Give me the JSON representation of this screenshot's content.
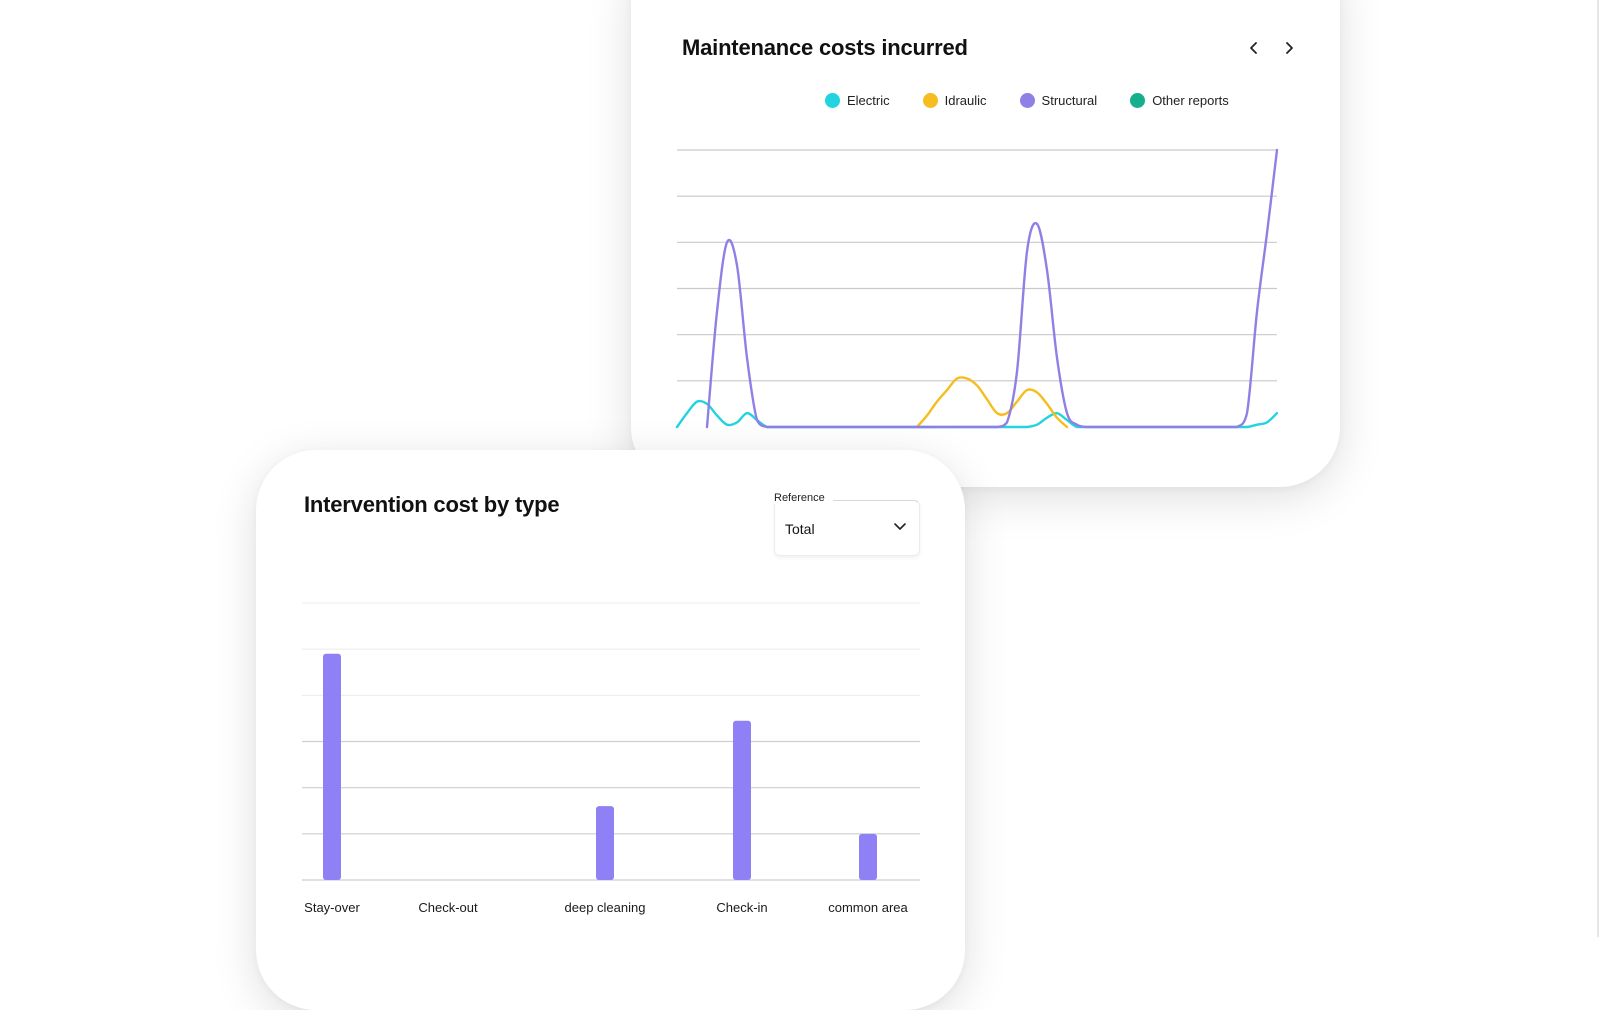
{
  "line_card": {
    "title": "Maintenance costs incurred",
    "nav": {
      "prev_icon": "chevron-left-icon",
      "next_icon": "chevron-right-icon"
    },
    "legend": [
      {
        "label": "Electric",
        "color": "#22d3e0"
      },
      {
        "label": "Idraulic",
        "color": "#f5bd1f"
      },
      {
        "label": "Structural",
        "color": "#8f80e6"
      },
      {
        "label": "Other reports",
        "color": "#14b08e"
      }
    ]
  },
  "bar_card": {
    "title": "Intervention cost by type",
    "reference": {
      "label": "Reference",
      "value": "Total",
      "icon": "chevron-down-icon"
    }
  },
  "chart_data": [
    {
      "type": "line",
      "title": "Maintenance costs incurred",
      "xlabel": "",
      "ylabel": "",
      "x": [
        0,
        1,
        2,
        3,
        4,
        5,
        6,
        7,
        8,
        9,
        10,
        11,
        12,
        13,
        14,
        15,
        16,
        17,
        18,
        19,
        20,
        21,
        22,
        23,
        24,
        25,
        26,
        27,
        28,
        29,
        30,
        31,
        32,
        33,
        34,
        35,
        36,
        37,
        38,
        39,
        40,
        41,
        42,
        43,
        44,
        45,
        46,
        47,
        48,
        49,
        50,
        51,
        52,
        53,
        54,
        55,
        56,
        57,
        58,
        59,
        60
      ],
      "ylim": [
        0,
        6
      ],
      "grid": true,
      "legend_position": "top-right",
      "series": [
        {
          "name": "Electric",
          "color": "#22d3e0",
          "values": [
            0,
            0.3,
            0.55,
            0.5,
            0.25,
            0.05,
            0.1,
            0.3,
            0.15,
            0,
            0,
            0,
            0,
            0,
            0,
            0,
            0,
            0,
            0,
            0,
            0,
            0,
            0,
            0,
            0,
            0,
            0,
            0,
            0,
            0,
            0,
            0,
            0,
            0,
            0,
            0,
            0.05,
            0.2,
            0.3,
            0.15,
            0,
            0,
            0,
            0,
            0,
            0,
            0,
            0,
            0,
            0,
            0,
            0,
            0,
            0,
            0,
            0,
            0,
            0,
            0.05,
            0.1,
            0.3
          ]
        },
        {
          "name": "Idraulic",
          "color": "#f5bd1f",
          "values": [
            null,
            null,
            null,
            null,
            null,
            null,
            null,
            null,
            null,
            null,
            null,
            null,
            null,
            null,
            null,
            null,
            null,
            null,
            null,
            null,
            null,
            null,
            null,
            null,
            0,
            0.25,
            0.55,
            0.8,
            1.05,
            1.05,
            0.9,
            0.6,
            0.3,
            0.3,
            0.55,
            0.8,
            0.75,
            0.5,
            0.2,
            0,
            null,
            null,
            null,
            null,
            null,
            null,
            null,
            null,
            null,
            null,
            null,
            null,
            null,
            null,
            null,
            null,
            null,
            null,
            null,
            null,
            null
          ]
        },
        {
          "name": "Structural",
          "color": "#8f80e6",
          "values": [
            null,
            null,
            null,
            0,
            2.5,
            4.0,
            3.5,
            1.5,
            0.15,
            0,
            0,
            0,
            0,
            0,
            0,
            0,
            0,
            0,
            0,
            0,
            0,
            0,
            0,
            0,
            0,
            0,
            0,
            0,
            0,
            0,
            0,
            0,
            0,
            0.1,
            1.2,
            3.8,
            4.4,
            3.4,
            1.5,
            0.3,
            0.05,
            0,
            0,
            0,
            0,
            0,
            0,
            0,
            0,
            0,
            0,
            0,
            0,
            0,
            0,
            0,
            0,
            0.3,
            2.5,
            4.2,
            6.0
          ]
        },
        {
          "name": "Other reports",
          "color": "#14b08e",
          "values": [
            null,
            null,
            null,
            null,
            null,
            null,
            null,
            null,
            null,
            null,
            null,
            null,
            null,
            null,
            null,
            null,
            null,
            null,
            null,
            null,
            null,
            null,
            null,
            null,
            null,
            null,
            null,
            null,
            null,
            null,
            null,
            null,
            null,
            null,
            null,
            null,
            null,
            null,
            null,
            null,
            null,
            null,
            null,
            null,
            null,
            null,
            null,
            null,
            null,
            null,
            null,
            null,
            null,
            null,
            null,
            null,
            null,
            null,
            null,
            null,
            null
          ]
        }
      ]
    },
    {
      "type": "bar",
      "title": "Intervention cost by type",
      "xlabel": "",
      "ylabel": "",
      "categories": [
        "Stay-over",
        "Check-out",
        "deep cleaning",
        "Check-in",
        "common area"
      ],
      "values": [
        4.9,
        0,
        1.6,
        3.45,
        1.0
      ],
      "ylim": [
        0,
        6
      ],
      "grid": true,
      "color": "#8f80f5"
    }
  ]
}
